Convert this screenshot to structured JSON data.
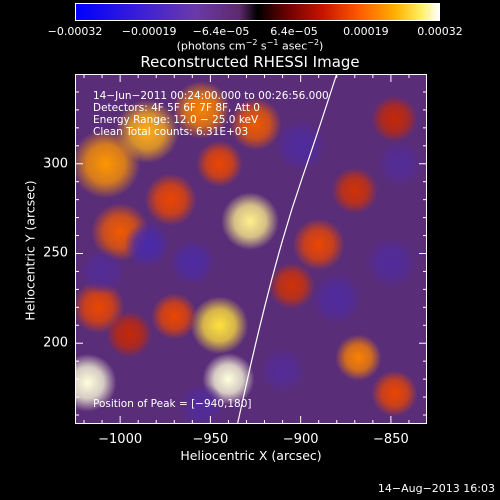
{
  "chart_data": {
    "type": "heatmap",
    "title": "Reconstructed RHESSI Image",
    "xlabel": "Heliocentric X (arcsec)",
    "ylabel": "Heliocentric Y (arcsec)",
    "xlim": [
      -1025,
      -830
    ],
    "ylim": [
      155,
      350
    ],
    "xticks": [
      "−1000",
      "−950",
      "−900",
      "−850"
    ],
    "xtick_values": [
      -1000,
      -950,
      -900,
      -850
    ],
    "yticks": [
      "300",
      "250",
      "200"
    ],
    "ytick_values": [
      300,
      250,
      200
    ],
    "colorbar": {
      "ticks": [
        "−0.00032",
        "−0.00019",
        "−6.4e−05",
        "6.4e−05",
        "0.00019",
        "0.00032"
      ],
      "tick_values": [
        -0.00032,
        -0.00019,
        -6.4e-05,
        6.4e-05,
        0.00019,
        0.00032
      ],
      "units_line": "(photons cm",
      "units_sup1": "−2",
      "units_mid": " s",
      "units_sup2": "−1",
      "units_end": " asec",
      "units_sup3": "−2",
      "units_close": ")"
    },
    "info_lines": [
      "14−Jun−2011 00:24:00.000 to 00:26:56.000",
      "Detectors: 4F 5F 6F 7F 8F, Att 0",
      "Energy Range: 12.0 − 25.0 keV",
      "Clean     Total counts: 6.31E+03"
    ],
    "peak_label": "Position of Peak = [−940,180]",
    "peak": {
      "x": -940,
      "y": 180
    },
    "limb_curve": [
      [
        -935,
        155
      ],
      [
        -925,
        200
      ],
      [
        -915,
        240
      ],
      [
        -905,
        275
      ],
      [
        -893,
        310
      ],
      [
        -880,
        350
      ]
    ],
    "sources": [
      {
        "x": -1018,
        "y": 178,
        "v": 1.0,
        "s": 10
      },
      {
        "x": -1012,
        "y": 220,
        "v": 0.55,
        "s": 9
      },
      {
        "x": -1008,
        "y": 300,
        "v": 0.75,
        "s": 12
      },
      {
        "x": -985,
        "y": 318,
        "v": 0.8,
        "s": 11
      },
      {
        "x": -955,
        "y": 330,
        "v": 0.7,
        "s": 10
      },
      {
        "x": -925,
        "y": 322,
        "v": 0.6,
        "s": 9
      },
      {
        "x": -1000,
        "y": 262,
        "v": 0.6,
        "s": 10
      },
      {
        "x": -972,
        "y": 280,
        "v": 0.55,
        "s": 9
      },
      {
        "x": -945,
        "y": 300,
        "v": 0.55,
        "s": 8
      },
      {
        "x": -928,
        "y": 268,
        "v": 0.95,
        "s": 10
      },
      {
        "x": -945,
        "y": 210,
        "v": 0.9,
        "s": 10
      },
      {
        "x": -940,
        "y": 180,
        "v": 1.0,
        "s": 9
      },
      {
        "x": -970,
        "y": 215,
        "v": 0.55,
        "s": 8
      },
      {
        "x": -995,
        "y": 205,
        "v": 0.4,
        "s": 8
      },
      {
        "x": -890,
        "y": 255,
        "v": 0.55,
        "s": 9
      },
      {
        "x": -870,
        "y": 285,
        "v": 0.45,
        "s": 8
      },
      {
        "x": -848,
        "y": 325,
        "v": 0.4,
        "s": 8
      },
      {
        "x": -868,
        "y": 192,
        "v": 0.7,
        "s": 8
      },
      {
        "x": -848,
        "y": 172,
        "v": 0.55,
        "s": 8
      },
      {
        "x": -905,
        "y": 232,
        "v": 0.45,
        "s": 8
      },
      {
        "x": -985,
        "y": 255,
        "v": -0.55,
        "s": 8
      },
      {
        "x": -960,
        "y": 245,
        "v": -0.45,
        "s": 8
      },
      {
        "x": -900,
        "y": 310,
        "v": -0.4,
        "s": 9
      },
      {
        "x": -880,
        "y": 225,
        "v": -0.4,
        "s": 9
      },
      {
        "x": -850,
        "y": 245,
        "v": -0.35,
        "s": 9
      },
      {
        "x": -1010,
        "y": 240,
        "v": -0.3,
        "s": 8
      },
      {
        "x": -955,
        "y": 165,
        "v": -0.35,
        "s": 8
      },
      {
        "x": -910,
        "y": 185,
        "v": -0.3,
        "s": 8
      },
      {
        "x": -845,
        "y": 300,
        "v": -0.3,
        "s": 8
      }
    ]
  },
  "footer": {
    "timestamp": "14−Aug−2013 16:03"
  }
}
